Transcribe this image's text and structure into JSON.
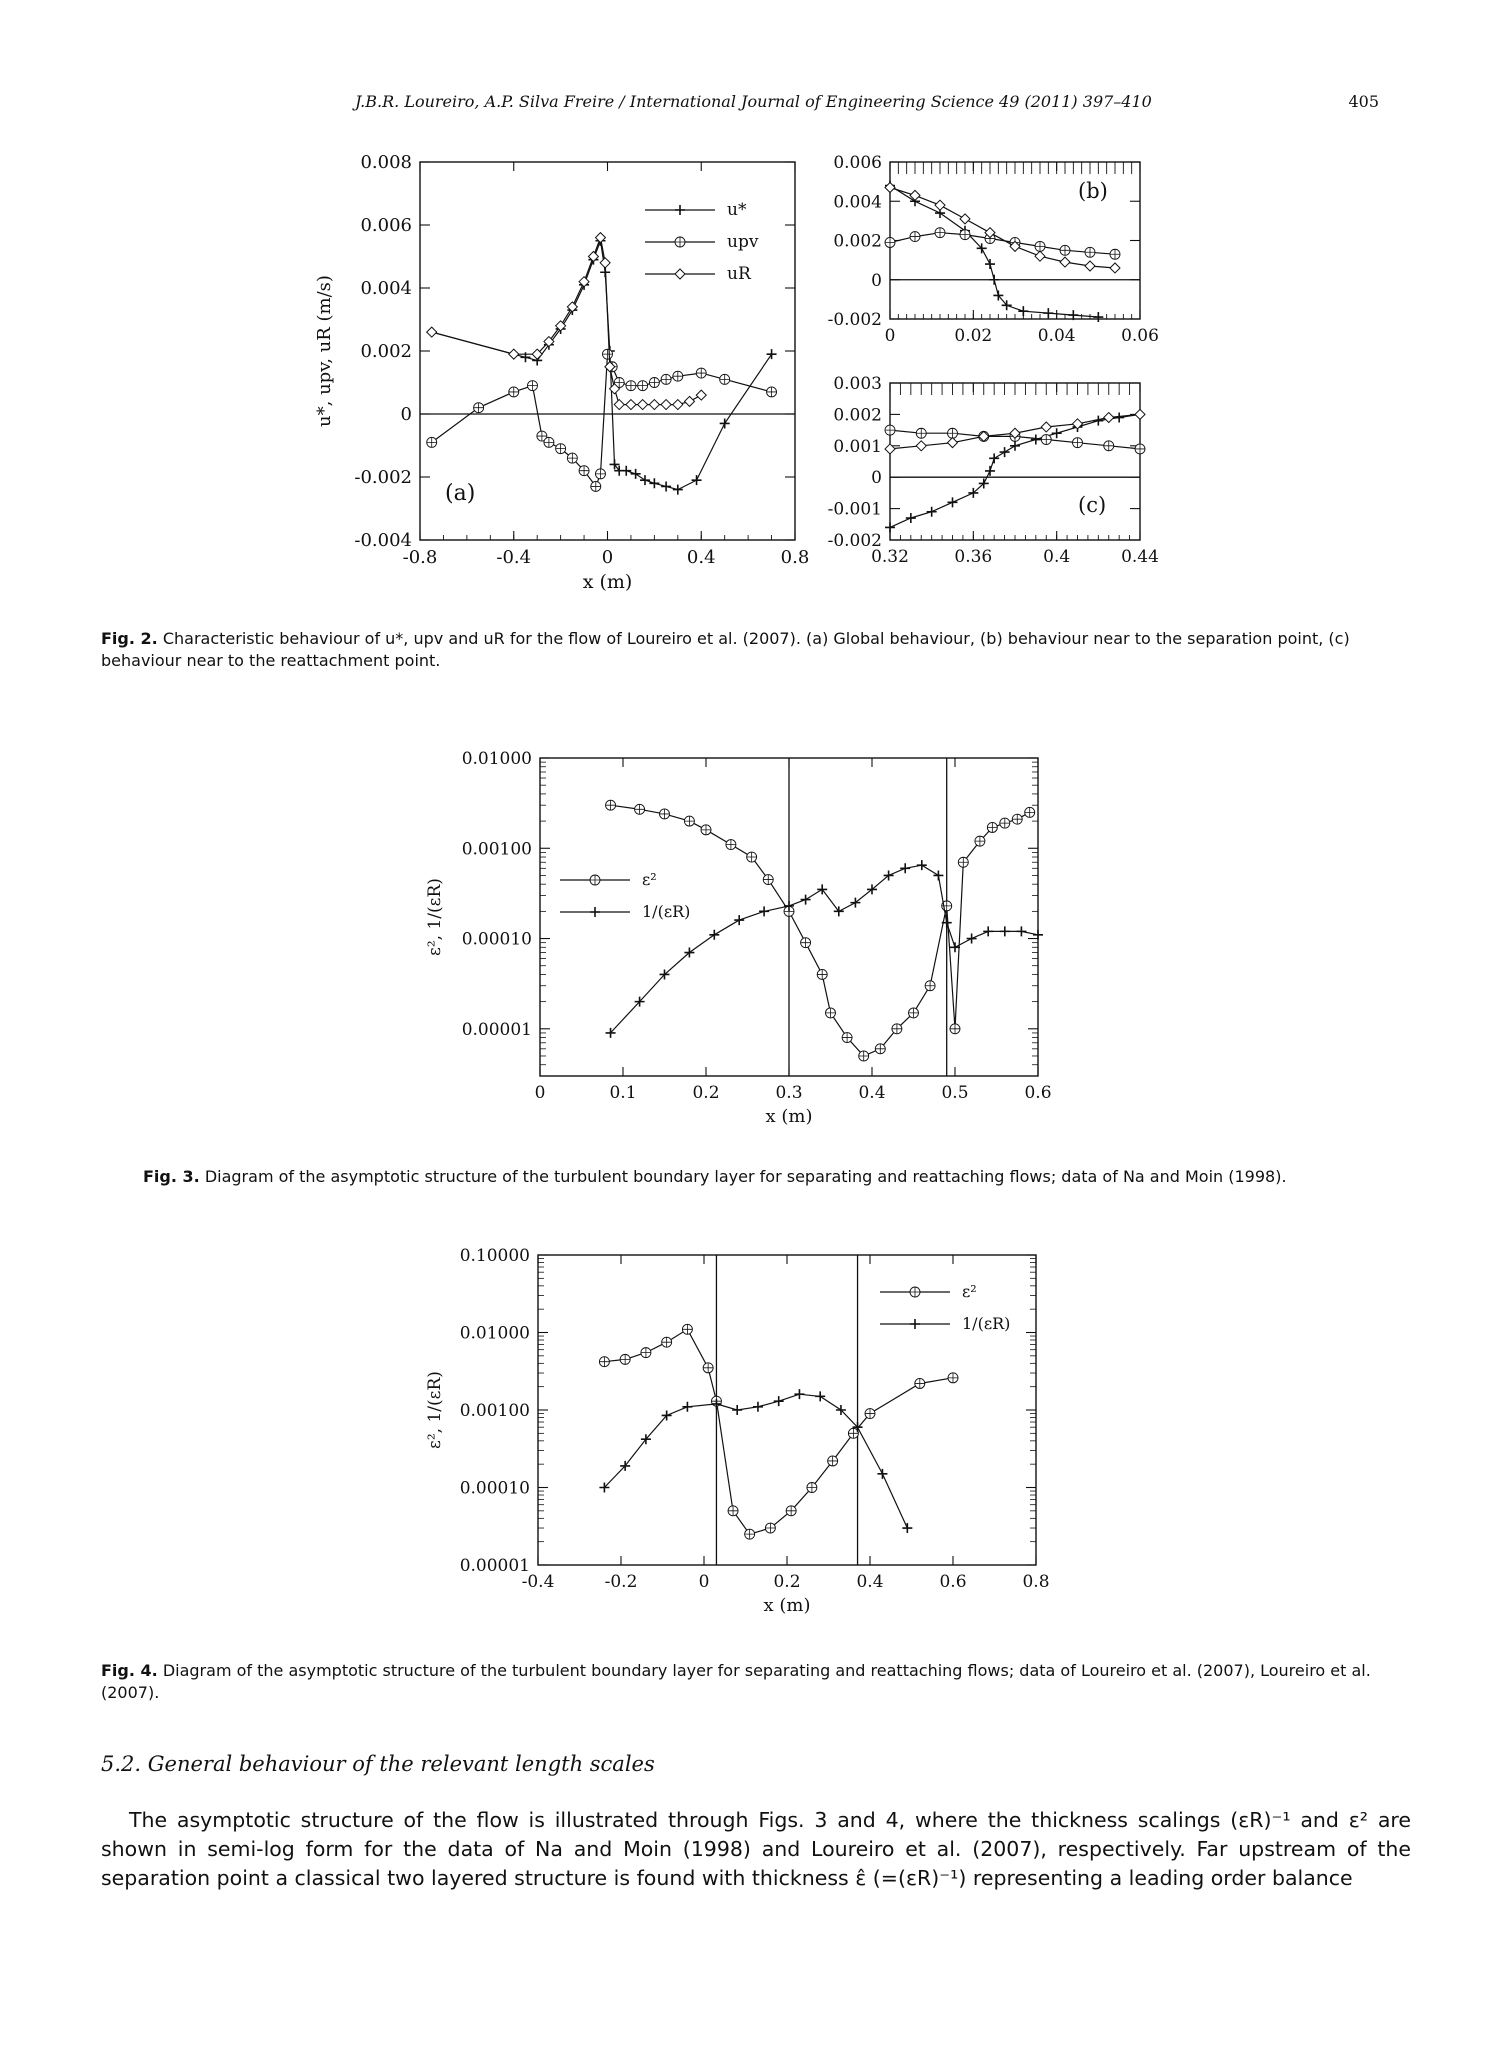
{
  "header": {
    "running_head": "J.B.R. Loureiro, A.P. Silva Freire / International Journal of Engineering Science 49 (2011) 397–410",
    "page_number": "405"
  },
  "fig2": {
    "caption_label": "Fig. 2.",
    "caption_text": "Characteristic behaviour of u*, upv and uR for the flow of Loureiro et al. (2007). (a) Global behaviour, (b) behaviour near to the separation point, (c) behaviour near to the reattachment point."
  },
  "fig3": {
    "caption_label": "Fig. 3.",
    "caption_text": "Diagram of the asymptotic structure of the turbulent boundary layer for separating and reattaching flows; data of Na and Moin (1998)."
  },
  "fig4": {
    "caption_label": "Fig. 4.",
    "caption_text": "Diagram of the asymptotic structure of the turbulent boundary layer for separating and reattaching flows; data of Loureiro et al. (2007), Loureiro et al. (2007)."
  },
  "section": {
    "heading": "5.2. General behaviour of the relevant length scales"
  },
  "body": {
    "paragraph": "The asymptotic structure of the flow is illustrated through Figs. 3 and 4, where the thickness scalings (εR)⁻¹ and ε² are shown in semi-log form for the data of Na and Moin (1998) and Loureiro et al. (2007), respectively. Far upstream of the separation point a classical two layered structure is found with thickness ε̂ (=(εR)⁻¹) representing a leading order balance"
  },
  "chart_data": [
    {
      "id": "fig2a",
      "type": "line",
      "panel_label": "(a)",
      "xlabel": "x (m)",
      "ylabel": "u*, upv, uR (m/s)",
      "xlim": [
        -0.8,
        0.8
      ],
      "ylim": [
        -0.004,
        0.008
      ],
      "xticks": [
        "-0.8",
        "-0.4",
        "0",
        "0.4",
        "0.8"
      ],
      "yticks": [
        "-0.004",
        "-0.002",
        "0",
        "0.002",
        "0.004",
        "0.006",
        "0.008"
      ],
      "legend_position": "top-right",
      "series": [
        {
          "name": "u*",
          "marker": "plus",
          "x": [
            -0.75,
            -0.4,
            -0.35,
            -0.3,
            -0.25,
            -0.2,
            -0.15,
            -0.1,
            -0.06,
            -0.03,
            -0.01,
            0.01,
            0.03,
            0.05,
            0.08,
            0.12,
            0.16,
            0.2,
            0.25,
            0.3,
            0.38,
            0.5,
            0.7
          ],
          "y": [
            0.0026,
            0.0019,
            0.0018,
            0.0017,
            0.0022,
            0.0027,
            0.0033,
            0.0041,
            0.0049,
            0.0055,
            0.0045,
            0.002,
            -0.0016,
            -0.0018,
            -0.0018,
            -0.0019,
            -0.0021,
            -0.0022,
            -0.0023,
            -0.0024,
            -0.0021,
            -0.0003,
            0.0019
          ]
        },
        {
          "name": "upv",
          "marker": "circle-plus",
          "x": [
            -0.75,
            -0.55,
            -0.4,
            -0.32,
            -0.28,
            -0.25,
            -0.2,
            -0.15,
            -0.1,
            -0.05,
            -0.03,
            0.0,
            0.02,
            0.05,
            0.1,
            0.15,
            0.2,
            0.25,
            0.3,
            0.4,
            0.5,
            0.7
          ],
          "y": [
            -0.0009,
            0.0002,
            0.0007,
            0.0009,
            -0.0007,
            -0.0009,
            -0.0011,
            -0.0014,
            -0.0018,
            -0.0023,
            -0.0019,
            0.0019,
            0.0015,
            0.001,
            0.0009,
            0.0009,
            0.001,
            0.0011,
            0.0012,
            0.0013,
            0.0011,
            0.0007
          ]
        },
        {
          "name": "uR",
          "marker": "diamond",
          "x": [
            -0.75,
            -0.4,
            -0.3,
            -0.25,
            -0.2,
            -0.15,
            -0.1,
            -0.06,
            -0.03,
            -0.01,
            0.01,
            0.03,
            0.05,
            0.1,
            0.15,
            0.2,
            0.25,
            0.3,
            0.35,
            0.4
          ],
          "y": [
            0.0026,
            0.0019,
            0.0019,
            0.0023,
            0.0028,
            0.0034,
            0.0042,
            0.005,
            0.0056,
            0.0048,
            0.0015,
            0.0008,
            0.0003,
            0.0003,
            0.0003,
            0.0003,
            0.0003,
            0.0003,
            0.0004,
            0.0006
          ]
        }
      ]
    },
    {
      "id": "fig2b",
      "type": "line",
      "panel_label": "(b)",
      "xlim": [
        0,
        0.06
      ],
      "ylim": [
        -0.002,
        0.006
      ],
      "xticks": [
        "0",
        "0.02",
        "0.04",
        "0.06"
      ],
      "yticks": [
        "-0.002",
        "0",
        "0.002",
        "0.004",
        "0.006"
      ],
      "series": [
        {
          "name": "u*",
          "x": [
            0,
            0.006,
            0.012,
            0.018,
            0.022,
            0.024,
            0.025,
            0.026,
            0.028,
            0.032,
            0.038,
            0.044,
            0.05
          ],
          "y": [
            0.0048,
            0.004,
            0.0034,
            0.0025,
            0.0016,
            0.0008,
            0.0,
            -0.0008,
            -0.0013,
            -0.0016,
            -0.0017,
            -0.0018,
            -0.0019
          ]
        },
        {
          "name": "upv",
          "x": [
            0,
            0.006,
            0.012,
            0.018,
            0.024,
            0.03,
            0.036,
            0.042,
            0.048,
            0.054
          ],
          "y": [
            0.0019,
            0.0022,
            0.0024,
            0.0023,
            0.0021,
            0.0019,
            0.0017,
            0.0015,
            0.0014,
            0.0013
          ]
        },
        {
          "name": "uR",
          "x": [
            0,
            0.006,
            0.012,
            0.018,
            0.024,
            0.03,
            0.036,
            0.042,
            0.048,
            0.054
          ],
          "y": [
            0.0047,
            0.0043,
            0.0038,
            0.0031,
            0.0024,
            0.0017,
            0.0012,
            0.0009,
            0.0007,
            0.0006
          ]
        }
      ]
    },
    {
      "id": "fig2c",
      "type": "line",
      "panel_label": "(c)",
      "xlim": [
        0.32,
        0.44
      ],
      "ylim": [
        -0.002,
        0.003
      ],
      "xticks": [
        "0.32",
        "0.36",
        "0.4",
        "0.44"
      ],
      "yticks": [
        "-0.002",
        "-0.001",
        "0",
        "0.001",
        "0.002",
        "0.003"
      ],
      "series": [
        {
          "name": "u*",
          "x": [
            0.32,
            0.33,
            0.34,
            0.35,
            0.36,
            0.365,
            0.368,
            0.37,
            0.375,
            0.38,
            0.39,
            0.4,
            0.41,
            0.42,
            0.43,
            0.44
          ],
          "y": [
            -0.0016,
            -0.0013,
            -0.0011,
            -0.0008,
            -0.0005,
            -0.0002,
            0.0002,
            0.0006,
            0.0008,
            0.001,
            0.0012,
            0.0014,
            0.0016,
            0.0018,
            0.0019,
            0.002
          ]
        },
        {
          "name": "upv",
          "x": [
            0.32,
            0.335,
            0.35,
            0.365,
            0.38,
            0.395,
            0.41,
            0.425,
            0.44
          ],
          "y": [
            0.0015,
            0.0014,
            0.0014,
            0.0013,
            0.0013,
            0.0012,
            0.0011,
            0.001,
            0.0009
          ]
        },
        {
          "name": "uR",
          "x": [
            0.32,
            0.335,
            0.35,
            0.365,
            0.38,
            0.395,
            0.41,
            0.425,
            0.44
          ],
          "y": [
            0.0009,
            0.001,
            0.0011,
            0.0013,
            0.0014,
            0.0016,
            0.0017,
            0.0019,
            0.002
          ]
        }
      ]
    },
    {
      "id": "fig3",
      "type": "line",
      "xlabel": "x (m)",
      "ylabel": "ε², 1/(εR)",
      "yscale": "log",
      "xlim": [
        0,
        0.6
      ],
      "ylim": [
        3e-06,
        0.01
      ],
      "xticks": [
        "0",
        "0.1",
        "0.2",
        "0.3",
        "0.4",
        "0.5",
        "0.6"
      ],
      "yticks": [
        "0.00001",
        "0.00010",
        "0.00100",
        "0.01000"
      ],
      "legend_position": "middle-left",
      "vlines": [
        0.3,
        0.49
      ],
      "series": [
        {
          "name": "ε²",
          "marker": "circle-plus",
          "x": [
            0.085,
            0.12,
            0.15,
            0.18,
            0.2,
            0.23,
            0.255,
            0.275,
            0.3,
            0.32,
            0.34,
            0.35,
            0.37,
            0.39,
            0.41,
            0.43,
            0.45,
            0.47,
            0.49,
            0.5,
            0.51,
            0.53,
            0.545,
            0.56,
            0.575,
            0.59
          ],
          "y": [
            0.003,
            0.0027,
            0.0024,
            0.002,
            0.0016,
            0.0011,
            0.0008,
            0.00045,
            0.0002,
            9e-05,
            4e-05,
            1.5e-05,
            8e-06,
            5e-06,
            6e-06,
            1e-05,
            1.5e-05,
            3e-05,
            0.00023,
            1e-05,
            0.0007,
            0.0012,
            0.0017,
            0.0019,
            0.0021,
            0.0025
          ]
        },
        {
          "name": "1/(εR)",
          "marker": "plus",
          "x": [
            0.085,
            0.12,
            0.15,
            0.18,
            0.21,
            0.24,
            0.27,
            0.3,
            0.32,
            0.34,
            0.36,
            0.38,
            0.4,
            0.42,
            0.44,
            0.46,
            0.48,
            0.49,
            0.5,
            0.52,
            0.54,
            0.56,
            0.58,
            0.6
          ],
          "y": [
            9e-06,
            2e-05,
            4e-05,
            7e-05,
            0.00011,
            0.00016,
            0.0002,
            0.00023,
            0.00027,
            0.00035,
            0.0002,
            0.00025,
            0.00035,
            0.0005,
            0.0006,
            0.00065,
            0.0005,
            0.00015,
            8e-05,
            0.0001,
            0.00012,
            0.00012,
            0.00012,
            0.00011
          ]
        }
      ]
    },
    {
      "id": "fig4",
      "type": "line",
      "xlabel": "x (m)",
      "ylabel": "ε², 1/(εR)",
      "yscale": "log",
      "xlim": [
        -0.4,
        0.8
      ],
      "ylim": [
        1e-05,
        0.1
      ],
      "xticks": [
        "-0.4",
        "-0.2",
        "0",
        "0.2",
        "0.4",
        "0.6",
        "0.8"
      ],
      "yticks": [
        "0.00001",
        "0.00010",
        "0.00100",
        "0.01000",
        "0.10000"
      ],
      "legend_position": "top-right",
      "vlines": [
        0.03,
        0.37
      ],
      "series": [
        {
          "name": "ε²",
          "marker": "circle-plus",
          "x": [
            -0.24,
            -0.19,
            -0.14,
            -0.09,
            -0.04,
            0.01,
            0.03,
            0.07,
            0.11,
            0.16,
            0.21,
            0.26,
            0.31,
            0.36,
            0.4,
            0.52,
            0.6
          ],
          "y": [
            0.0042,
            0.0045,
            0.0055,
            0.0075,
            0.011,
            0.0035,
            0.0013,
            5e-05,
            2.5e-05,
            3e-05,
            5e-05,
            0.0001,
            0.00022,
            0.0005,
            0.0009,
            0.0022,
            0.0026
          ]
        },
        {
          "name": "1/(εR)",
          "marker": "plus",
          "x": [
            -0.24,
            -0.19,
            -0.14,
            -0.09,
            -0.04,
            0.03,
            0.08,
            0.13,
            0.18,
            0.23,
            0.28,
            0.33,
            0.37,
            0.43,
            0.49
          ],
          "y": [
            0.0001,
            0.00019,
            0.00042,
            0.00085,
            0.0011,
            0.0012,
            0.001,
            0.0011,
            0.0013,
            0.0016,
            0.0015,
            0.001,
            0.0006,
            0.00015,
            3e-05
          ]
        }
      ]
    }
  ]
}
